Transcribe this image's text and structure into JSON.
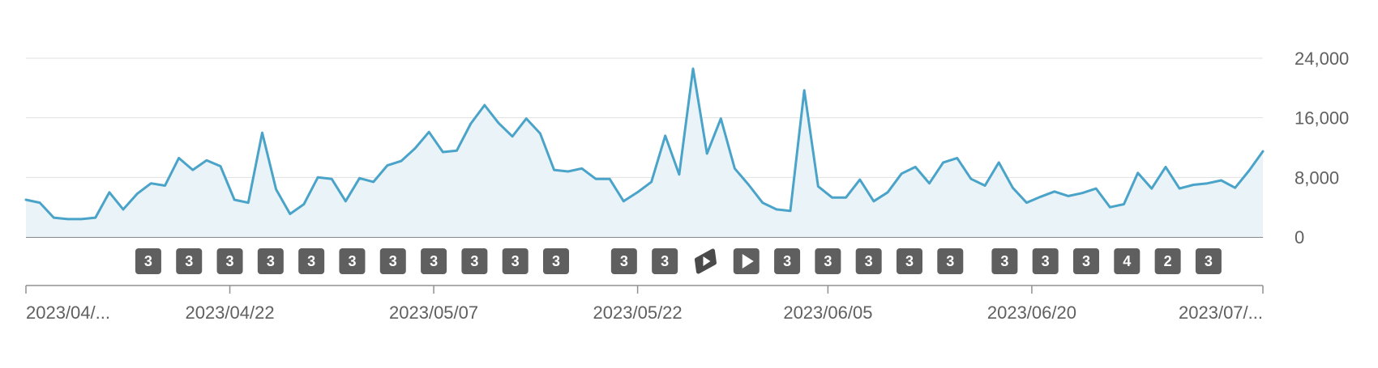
{
  "chart_data": {
    "type": "area",
    "title": "",
    "xlabel": "",
    "ylabel": "",
    "ylim": [
      0,
      24000
    ],
    "yticks": [
      0,
      8000,
      16000,
      24000
    ],
    "ytick_labels": [
      "0",
      "8,000",
      "16,000",
      "24,000"
    ],
    "grid": true,
    "x_start": "2023/04/07",
    "x_end": "2023/07/07",
    "xtick_labels": [
      {
        "label": "2023/04/...",
        "date": "2023/04/07"
      },
      {
        "label": "2023/04/22",
        "date": "2023/04/22"
      },
      {
        "label": "2023/05/07",
        "date": "2023/05/07"
      },
      {
        "label": "2023/05/22",
        "date": "2023/05/22"
      },
      {
        "label": "2023/06/05",
        "date": "2023/06/05"
      },
      {
        "label": "2023/06/20",
        "date": "2023/06/20"
      },
      {
        "label": "2023/07/...",
        "date": "2023/07/07"
      }
    ],
    "series": [
      {
        "color": "#4aa3c8",
        "fill": "#eaf3f7",
        "values": [
          5000,
          4600,
          2600,
          2400,
          2400,
          2600,
          6000,
          3700,
          5800,
          7200,
          6900,
          10600,
          9000,
          10300,
          9500,
          5000,
          4600,
          14000,
          6400,
          3100,
          4400,
          8000,
          7800,
          4800,
          7900,
          7400,
          9600,
          10200,
          11900,
          14100,
          11400,
          11600,
          15200,
          17700,
          15300,
          13500,
          15900,
          13900,
          9000,
          8800,
          9200,
          7800,
          7800,
          4800,
          6000,
          7400,
          13600,
          8400,
          22600,
          11200,
          15900,
          9200,
          7000,
          4600,
          3700,
          3500,
          19700,
          6800,
          5300,
          5300,
          7700,
          4800,
          6000,
          8500,
          9400,
          7200,
          10000,
          10600,
          7800,
          6900,
          10000,
          6600,
          4600,
          5400,
          6100,
          5500,
          5900,
          6500,
          4000,
          4400,
          8600,
          6500,
          9400,
          6500,
          7000,
          7200,
          7600,
          6600,
          8900,
          11500
        ]
      }
    ],
    "markers": [
      {
        "date": "2023/04/16",
        "type": "count",
        "label": "3"
      },
      {
        "date": "2023/04/19",
        "type": "count",
        "label": "3"
      },
      {
        "date": "2023/04/22",
        "type": "count",
        "label": "3"
      },
      {
        "date": "2023/04/25",
        "type": "count",
        "label": "3"
      },
      {
        "date": "2023/04/28",
        "type": "count",
        "label": "3"
      },
      {
        "date": "2023/05/01",
        "type": "count",
        "label": "3"
      },
      {
        "date": "2023/05/04",
        "type": "count",
        "label": "3"
      },
      {
        "date": "2023/05/07",
        "type": "count",
        "label": "3"
      },
      {
        "date": "2023/05/10",
        "type": "count",
        "label": "3"
      },
      {
        "date": "2023/05/13",
        "type": "count",
        "label": "3"
      },
      {
        "date": "2023/05/16",
        "type": "count",
        "label": "3"
      },
      {
        "date": "2023/05/21",
        "type": "count",
        "label": "3"
      },
      {
        "date": "2023/05/24",
        "type": "count",
        "label": "3"
      },
      {
        "date": "2023/05/27",
        "type": "shorts",
        "label": ""
      },
      {
        "date": "2023/05/30",
        "type": "video",
        "label": ""
      },
      {
        "date": "2023/06/02",
        "type": "count",
        "label": "3"
      },
      {
        "date": "2023/06/05",
        "type": "count",
        "label": "3"
      },
      {
        "date": "2023/06/08",
        "type": "count",
        "label": "3"
      },
      {
        "date": "2023/06/11",
        "type": "count",
        "label": "3"
      },
      {
        "date": "2023/06/14",
        "type": "count",
        "label": "3"
      },
      {
        "date": "2023/06/18",
        "type": "count",
        "label": "3"
      },
      {
        "date": "2023/06/21",
        "type": "count",
        "label": "3"
      },
      {
        "date": "2023/06/24",
        "type": "count",
        "label": "3"
      },
      {
        "date": "2023/06/27",
        "type": "count",
        "label": "4"
      },
      {
        "date": "2023/06/30",
        "type": "count",
        "label": "2"
      },
      {
        "date": "2023/07/03",
        "type": "count",
        "label": "3"
      }
    ]
  }
}
